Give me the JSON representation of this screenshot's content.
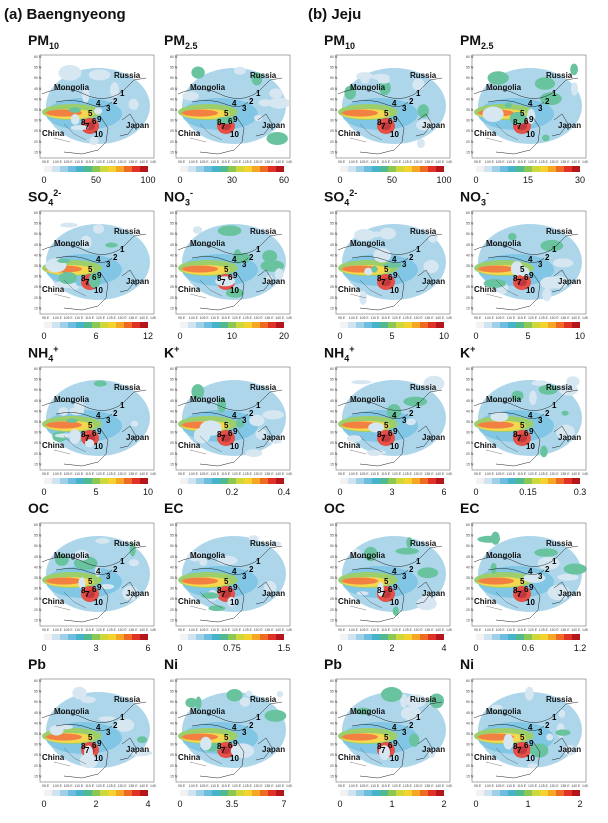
{
  "columns": [
    {
      "title": "(a) Baengnyeong",
      "panels": [
        {
          "base": "PM",
          "sub": "10",
          "sup": "",
          "ticks": [
            "0",
            "50",
            "100"
          ]
        },
        {
          "base": "PM",
          "sub": "2.5",
          "sup": "",
          "ticks": [
            "0",
            "30",
            "60"
          ]
        },
        {
          "base": "SO",
          "sub": "4",
          "sup": "2-",
          "ticks": [
            "0",
            "6",
            "12"
          ]
        },
        {
          "base": "NO",
          "sub": "3",
          "sup": "-",
          "ticks": [
            "0",
            "10",
            "20"
          ]
        },
        {
          "base": "NH",
          "sub": "4",
          "sup": "+",
          "ticks": [
            "0",
            "5",
            "10"
          ]
        },
        {
          "base": "K",
          "sub": "",
          "sup": "+",
          "ticks": [
            "0",
            "0.2",
            "0.4"
          ]
        },
        {
          "base": "OC",
          "sub": "",
          "sup": "",
          "ticks": [
            "0",
            "3",
            "6"
          ]
        },
        {
          "base": "EC",
          "sub": "",
          "sup": "",
          "ticks": [
            "0",
            "0.75",
            "1.5"
          ]
        },
        {
          "base": "Pb",
          "sub": "",
          "sup": "",
          "ticks": [
            "0",
            "2",
            "4"
          ]
        },
        {
          "base": "Ni",
          "sub": "",
          "sup": "",
          "ticks": [
            "0",
            "3.5",
            "7"
          ]
        }
      ]
    },
    {
      "title": "(b) Jeju",
      "panels": [
        {
          "base": "PM",
          "sub": "10",
          "sup": "",
          "ticks": [
            "0",
            "50",
            "100"
          ]
        },
        {
          "base": "PM",
          "sub": "2.5",
          "sup": "",
          "ticks": [
            "0",
            "15",
            "30"
          ]
        },
        {
          "base": "SO",
          "sub": "4",
          "sup": "2-",
          "ticks": [
            "0",
            "5",
            "10"
          ]
        },
        {
          "base": "NO",
          "sub": "3",
          "sup": "-",
          "ticks": [
            "0",
            "5",
            "10"
          ]
        },
        {
          "base": "NH",
          "sub": "4",
          "sup": "+",
          "ticks": [
            "0",
            "3",
            "6"
          ]
        },
        {
          "base": "K",
          "sub": "",
          "sup": "+",
          "ticks": [
            "0",
            "0.15",
            "0.3"
          ]
        },
        {
          "base": "OC",
          "sub": "",
          "sup": "",
          "ticks": [
            "0",
            "2",
            "4"
          ]
        },
        {
          "base": "EC",
          "sub": "",
          "sup": "",
          "ticks": [
            "0",
            "0.6",
            "1.2"
          ]
        },
        {
          "base": "Pb",
          "sub": "",
          "sup": "",
          "ticks": [
            "0",
            "1",
            "2"
          ]
        },
        {
          "base": "Ni",
          "sub": "",
          "sup": "",
          "ticks": [
            "0",
            "1",
            "2"
          ]
        }
      ]
    }
  ],
  "map_labels": {
    "mongolia": "Mongolia",
    "russia": "Russia",
    "china": "China",
    "japan": "Japan"
  },
  "region_numbers": [
    "1",
    "2",
    "3",
    "4",
    "5",
    "6",
    "7",
    "8",
    "9",
    "10"
  ],
  "lon_labels": [
    "95 E",
    "100 E",
    "105 E",
    "110 E",
    "115 E",
    "120 E",
    "125 E",
    "130 E",
    "135 E",
    "140 E",
    "145 E"
  ],
  "lat_labels": [
    "60 N",
    "55 N",
    "50 N",
    "45 N",
    "40 N",
    "35 N",
    "30 N",
    "25 N",
    "20 N",
    "15 N"
  ],
  "colorbar_colors": [
    "#f2f2f2",
    "#cfe3f0",
    "#9fd0e8",
    "#6cbde0",
    "#46b3c9",
    "#4fb98f",
    "#8cc653",
    "#cfd83a",
    "#f4d230",
    "#f5a623",
    "#ef6a22",
    "#e03226",
    "#b5161b"
  ]
}
